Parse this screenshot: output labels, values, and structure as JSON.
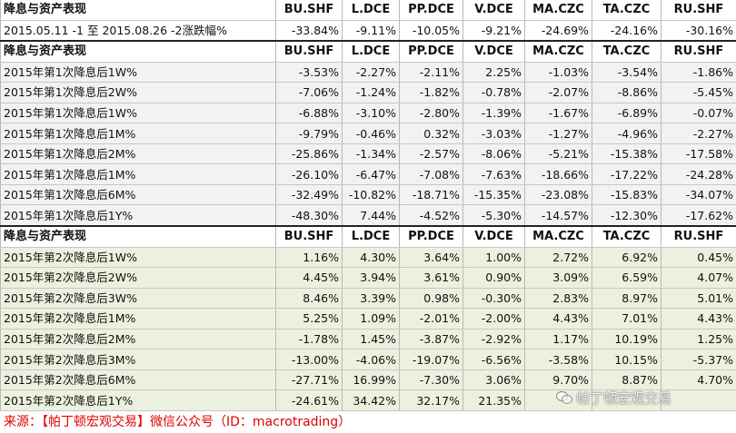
{
  "header": {
    "title": "降息与资产表现",
    "columns": [
      "BU.SHF",
      "L.DCE",
      "PP.DCE",
      "V.DCE",
      "MA.CZC",
      "TA.CZC",
      "RU.SHF"
    ]
  },
  "summary_row": {
    "label": "2015.05.11 -1 至 2015.08.26 -2涨跌幅%",
    "values": [
      "-33.84%",
      "-9.11%",
      "-10.05%",
      "-9.21%",
      "-24.69%",
      "-24.16%",
      "-30.16%"
    ]
  },
  "section1": {
    "title": "降息与资产表现",
    "columns": [
      "BU.SHF",
      "L.DCE",
      "PP.DCE",
      "V.DCE",
      "MA.CZC",
      "TA.CZC",
      "RU.SHF"
    ],
    "rows": [
      {
        "label": "2015年第1次降息后1W%",
        "values": [
          "-3.53%",
          "-2.27%",
          "-2.11%",
          "2.25%",
          "-1.03%",
          "-3.54%",
          "-1.86%"
        ]
      },
      {
        "label": "2015年第1次降息后2W%",
        "values": [
          "-7.06%",
          "-1.24%",
          "-1.82%",
          "-0.78%",
          "-2.07%",
          "-8.86%",
          "-5.45%"
        ]
      },
      {
        "label": "2015年第1次降息后1W%",
        "values": [
          "-6.88%",
          "-3.10%",
          "-2.80%",
          "-1.39%",
          "-1.67%",
          "-6.89%",
          "-0.07%"
        ]
      },
      {
        "label": "2015年第1次降息后1M%",
        "values": [
          "-9.79%",
          "-0.46%",
          "0.32%",
          "-3.03%",
          "-1.27%",
          "-4.96%",
          "-2.27%"
        ]
      },
      {
        "label": "2015年第1次降息后2M%",
        "values": [
          "-25.86%",
          "-1.34%",
          "-2.57%",
          "-8.06%",
          "-5.21%",
          "-15.38%",
          "-17.58%"
        ]
      },
      {
        "label": "2015年第1次降息后1M%",
        "values": [
          "-26.10%",
          "-6.47%",
          "-7.08%",
          "-7.63%",
          "-18.66%",
          "-17.22%",
          "-24.28%"
        ]
      },
      {
        "label": "2015年第1次降息后6M%",
        "values": [
          "-32.49%",
          "-10.82%",
          "-18.71%",
          "-15.35%",
          "-23.08%",
          "-15.83%",
          "-34.07%"
        ]
      },
      {
        "label": "2015年第1次降息后1Y%",
        "values": [
          "-48.30%",
          "7.44%",
          "-4.52%",
          "-5.30%",
          "-14.57%",
          "-12.30%",
          "-17.62%"
        ]
      }
    ]
  },
  "section2": {
    "title": "降息与资产表现",
    "columns": [
      "BU.SHF",
      "L.DCE",
      "PP.DCE",
      "V.DCE",
      "MA.CZC",
      "TA.CZC",
      "RU.SHF"
    ],
    "rows": [
      {
        "label": "2015年第2次降息后1W%",
        "values": [
          "1.16%",
          "4.30%",
          "3.64%",
          "1.00%",
          "2.72%",
          "6.92%",
          "0.45%"
        ]
      },
      {
        "label": "2015年第2次降息后2W%",
        "values": [
          "4.45%",
          "3.94%",
          "3.61%",
          "0.90%",
          "3.09%",
          "6.59%",
          "4.07%"
        ]
      },
      {
        "label": "2015年第2次降息后3W%",
        "values": [
          "8.46%",
          "3.39%",
          "0.98%",
          "-0.30%",
          "2.83%",
          "8.97%",
          "5.01%"
        ]
      },
      {
        "label": "2015年第2次降息后1M%",
        "values": [
          "5.25%",
          "1.09%",
          "-2.01%",
          "-2.00%",
          "4.43%",
          "7.01%",
          "4.43%"
        ]
      },
      {
        "label": "2015年第2次降息后2M%",
        "values": [
          "-1.78%",
          "1.45%",
          "-3.87%",
          "-2.92%",
          "1.17%",
          "10.19%",
          "1.25%"
        ]
      },
      {
        "label": "2015年第2次降息后3M%",
        "values": [
          "-13.00%",
          "-4.06%",
          "-19.07%",
          "-6.56%",
          "-3.58%",
          "10.15%",
          "-5.37%"
        ]
      },
      {
        "label": "2015年第2次降息后6M%",
        "values": [
          "-27.71%",
          "16.99%",
          "-7.30%",
          "3.06%",
          "9.70%",
          "8.87%",
          "4.70%"
        ]
      },
      {
        "label": "2015年第2次降息后1Y%",
        "values": [
          "-24.61%",
          "34.42%",
          "32.17%",
          "21.35%",
          "",
          "",
          ""
        ]
      }
    ]
  },
  "footer": {
    "source": "来源：【帕丁顿宏观交易】微信公众号（ID：macrotrading）"
  },
  "watermark": {
    "text": "帕丁顿宏观交易",
    "icon": "wechat-icon"
  },
  "colors": {
    "section1_bg": "#f2f2f2",
    "section2_bg": "#ebf1de",
    "footer_text": "#e00000"
  }
}
